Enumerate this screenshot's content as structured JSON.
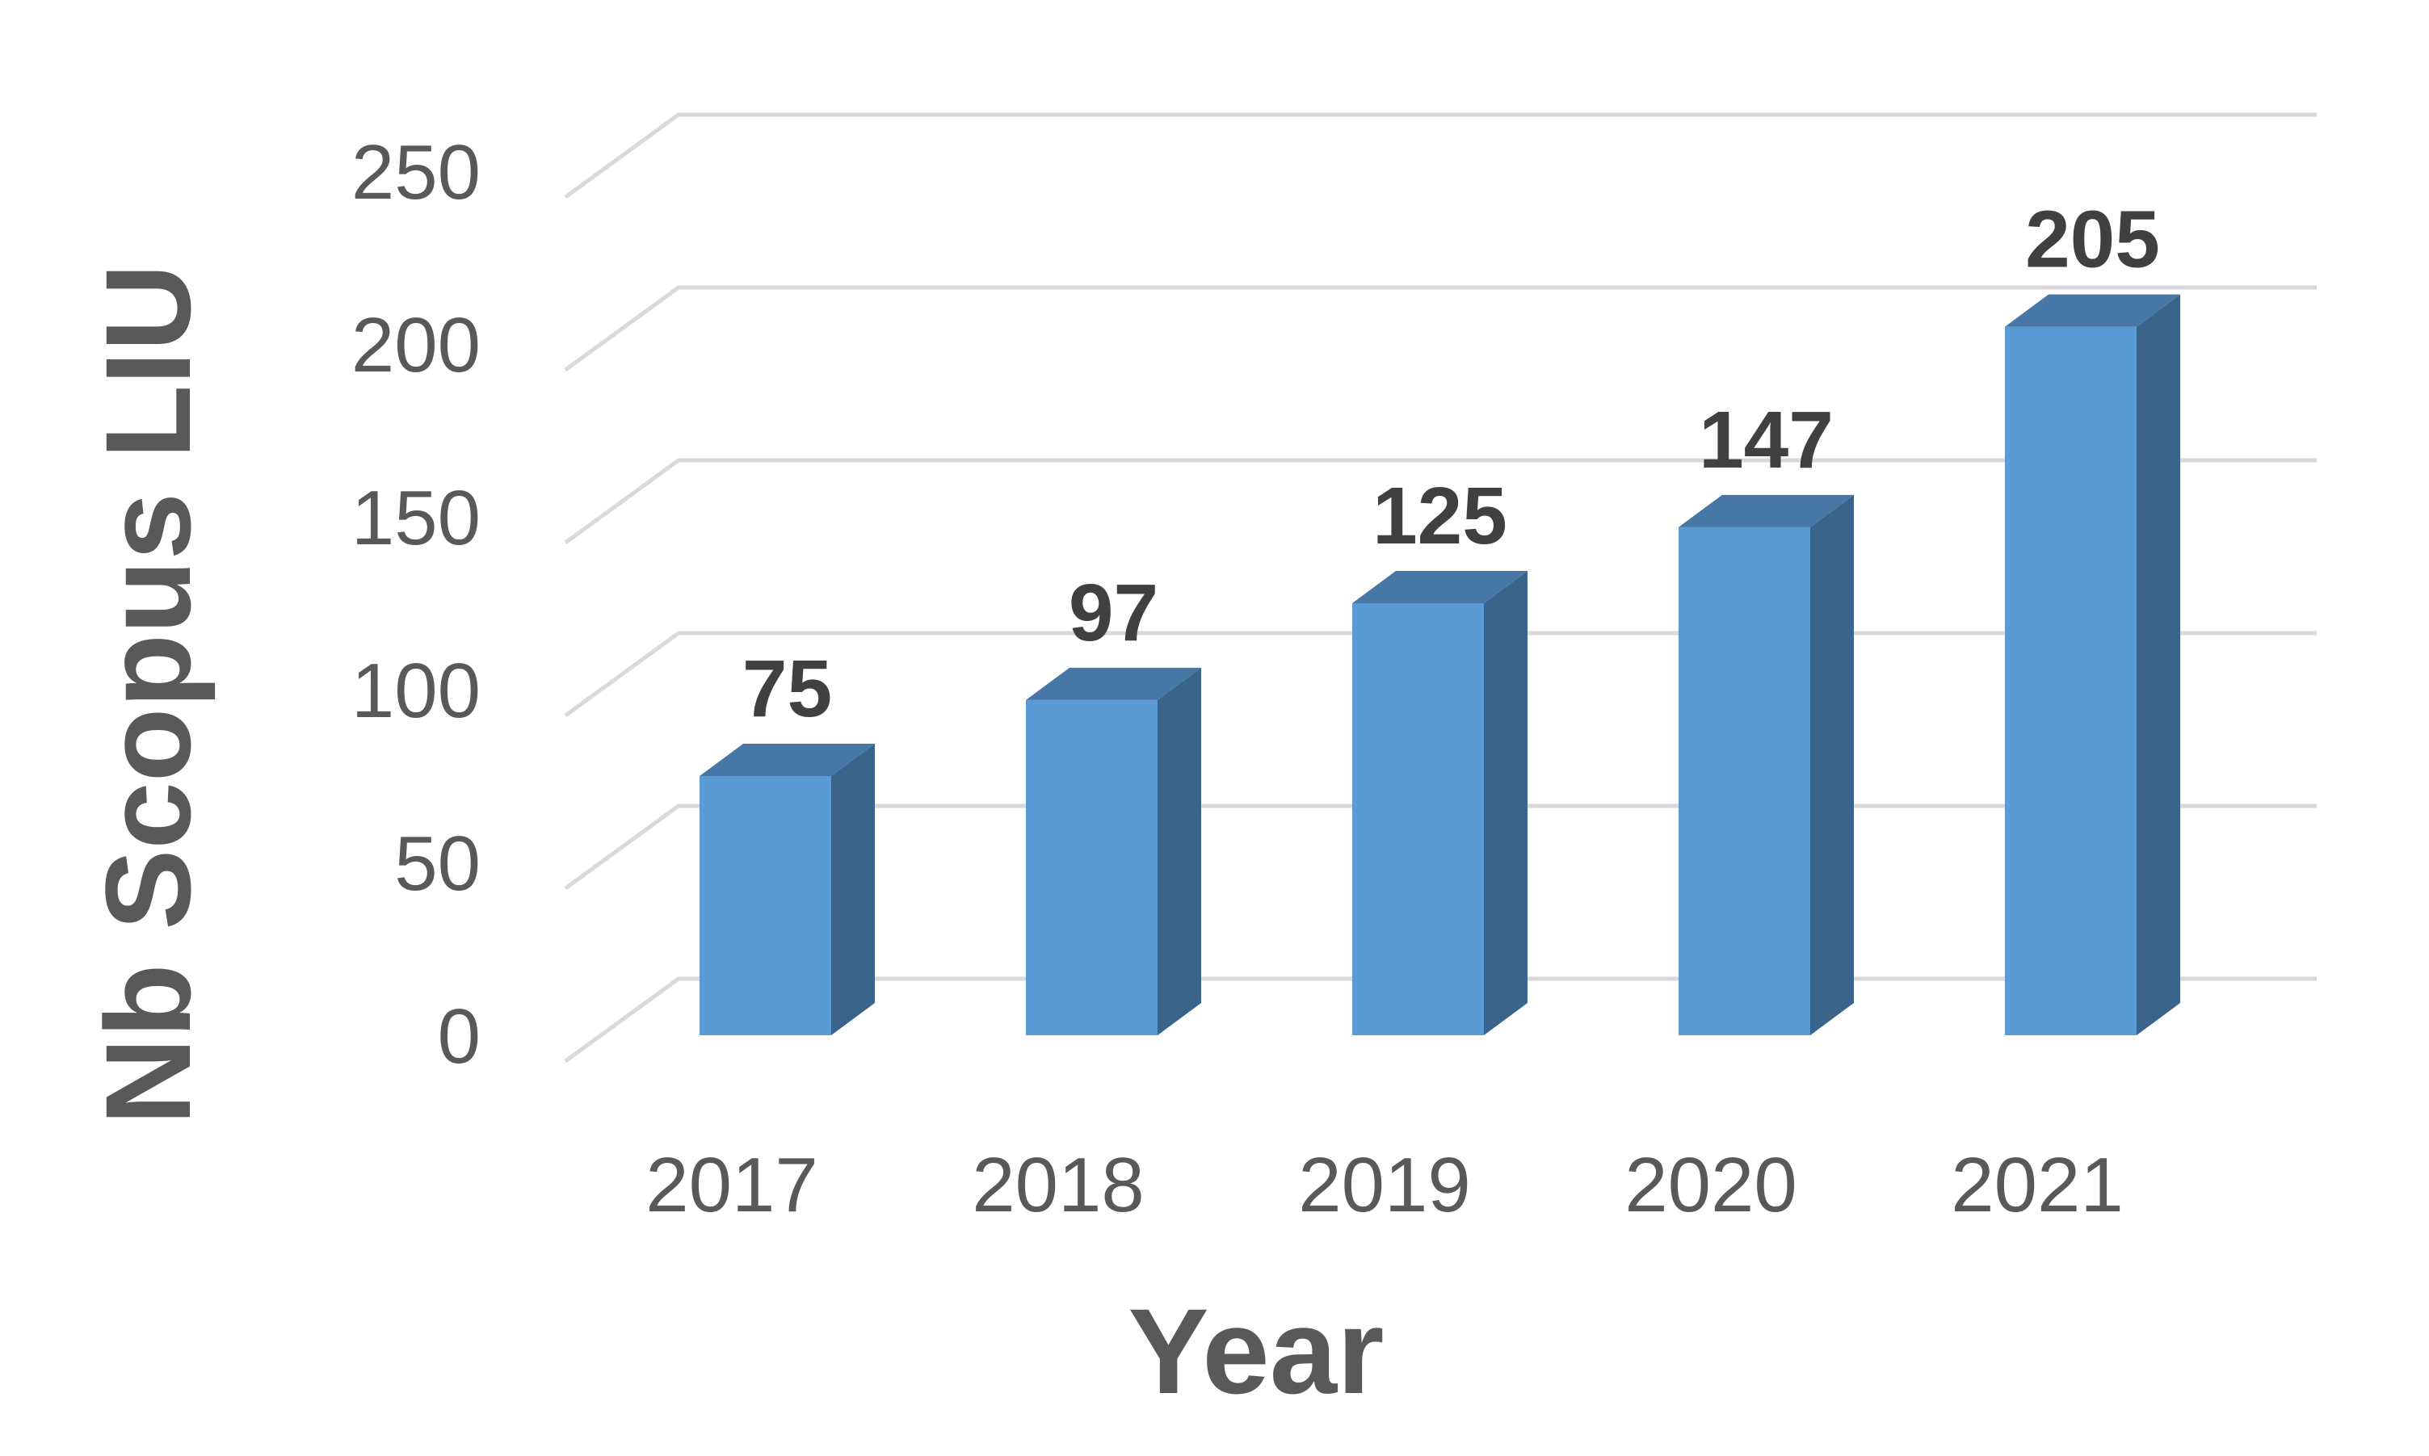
{
  "chart_data": {
    "type": "bar",
    "style": "3d-column",
    "categories": [
      "2017",
      "2018",
      "2019",
      "2020",
      "2021"
    ],
    "series": [
      {
        "values": [
          75,
          97,
          125,
          147,
          205
        ]
      }
    ],
    "data_labels": [
      "75",
      "97",
      "125",
      "147",
      "205"
    ],
    "xlabel": "Year",
    "ylabel": "Nb Scopus LIU",
    "ylim": [
      0,
      250
    ],
    "yticks": [
      0,
      50,
      100,
      150,
      200,
      250
    ],
    "ytick_labels": [
      "0",
      "50",
      "100",
      "150",
      "200",
      "250"
    ],
    "grid": true,
    "legend": "none",
    "colors": {
      "bar_front": "#5b9bd5",
      "bar_side": "#3a6489",
      "bar_top": "#4677a6",
      "grid": "#d9d9d9",
      "tick_text": "#595959",
      "label_text": "#404040"
    }
  }
}
